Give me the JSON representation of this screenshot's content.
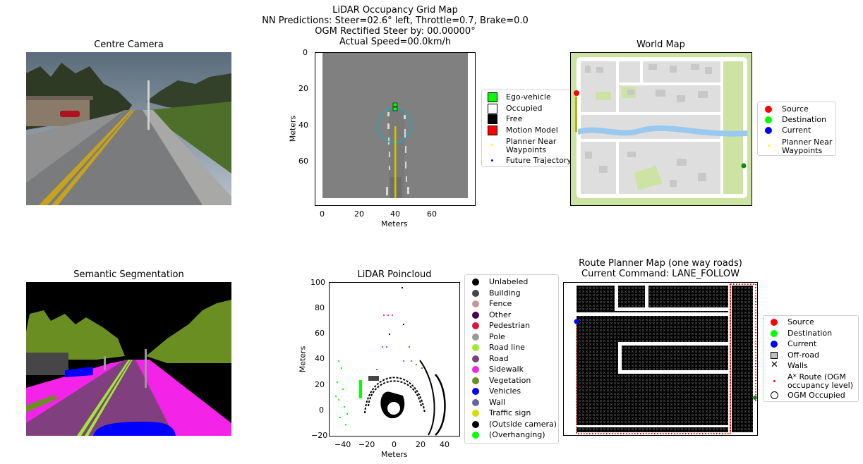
{
  "main_title": {
    "line1": "LiDAR Occupancy Grid Map",
    "line2": "NN Predictions: Steer=02.6° left, Throttle=0.7, Brake=0.0",
    "line3": "OGM Rectified Steer by: 00.00000°",
    "line4": "Actual Speed=00.0km/h"
  },
  "centre_camera": {
    "title": "Centre Camera"
  },
  "ogm": {
    "xlabel": "Meters",
    "ylabel": "Meters",
    "xticks": [
      "0",
      "20",
      "40",
      "60"
    ],
    "yticks": [
      "0",
      "20",
      "40",
      "60"
    ],
    "legend": [
      {
        "label": "Ego-vehicle",
        "color": "#00ff00",
        "marker": "square"
      },
      {
        "label": "Occupied",
        "color": "#ffffff",
        "marker": "square"
      },
      {
        "label": "Free",
        "color": "#000000",
        "marker": "square"
      },
      {
        "label": "Motion Model",
        "color": "#ff0000",
        "marker": "square"
      },
      {
        "label": "Planner Near\nWaypoints",
        "color": "#ffff00",
        "marker": "dot"
      },
      {
        "label": "Future Trajectory",
        "color": "#0000ff",
        "marker": "dot"
      }
    ]
  },
  "world_map": {
    "title": "World Map",
    "legend": [
      {
        "label": "Source",
        "color": "#ff0000"
      },
      {
        "label": "Destination",
        "color": "#00ff00"
      },
      {
        "label": "Current",
        "color": "#0000ff"
      },
      {
        "label": "Planner Near\nWaypoints",
        "color": "#ffff00"
      }
    ]
  },
  "semantic": {
    "title": "Semantic Segmentation"
  },
  "lidar": {
    "title": "LiDAR Poincloud",
    "xlabel": "Meters",
    "ylabel": "Meters",
    "xticks": [
      "−40",
      "−20",
      "0",
      "20",
      "40"
    ],
    "yticks": [
      "100",
      "80",
      "60",
      "40",
      "20",
      "0",
      "−20"
    ],
    "legend": [
      {
        "label": "Unlabeled",
        "color": "#000000"
      },
      {
        "label": "Building",
        "color": "#464646"
      },
      {
        "label": "Fence",
        "color": "#be9999"
      },
      {
        "label": "Other",
        "color": "#48004b"
      },
      {
        "label": "Pedestrian",
        "color": "#dc143c"
      },
      {
        "label": "Pole",
        "color": "#999999"
      },
      {
        "label": "Road line",
        "color": "#9dea32"
      },
      {
        "label": "Road",
        "color": "#80407f"
      },
      {
        "label": "Sidewalk",
        "color": "#f423e8"
      },
      {
        "label": "Vegetation",
        "color": "#6b8e23"
      },
      {
        "label": "Vehicles",
        "color": "#0000fe"
      },
      {
        "label": "Wall",
        "color": "#66669c"
      },
      {
        "label": "Traffic sign",
        "color": "#dcdc00"
      },
      {
        "label": "(Outside camera)",
        "color": "#000000"
      },
      {
        "label": "(Overhanging)",
        "color": "#00ff00"
      }
    ]
  },
  "route": {
    "title_line1": "Route Planner Map (one way roads)",
    "title_line2": "Current Command: LANE_FOLLOW",
    "legend": [
      {
        "label": "Source",
        "color": "#ff0000",
        "marker": "dot"
      },
      {
        "label": "Destination",
        "color": "#00ff00",
        "marker": "dot"
      },
      {
        "label": "Current",
        "color": "#0000ff",
        "marker": "dot"
      },
      {
        "label": "Off-road",
        "color": "#c0c0c0",
        "marker": "square"
      },
      {
        "label": "Walls",
        "color": "#000000",
        "marker": "x"
      },
      {
        "label": "A* Route (OGM\noccupancy level)",
        "color": "#ff0000",
        "marker": "smalldot"
      },
      {
        "label": "OGM Occupied",
        "color": "#ffffff",
        "marker": "circle"
      }
    ]
  }
}
